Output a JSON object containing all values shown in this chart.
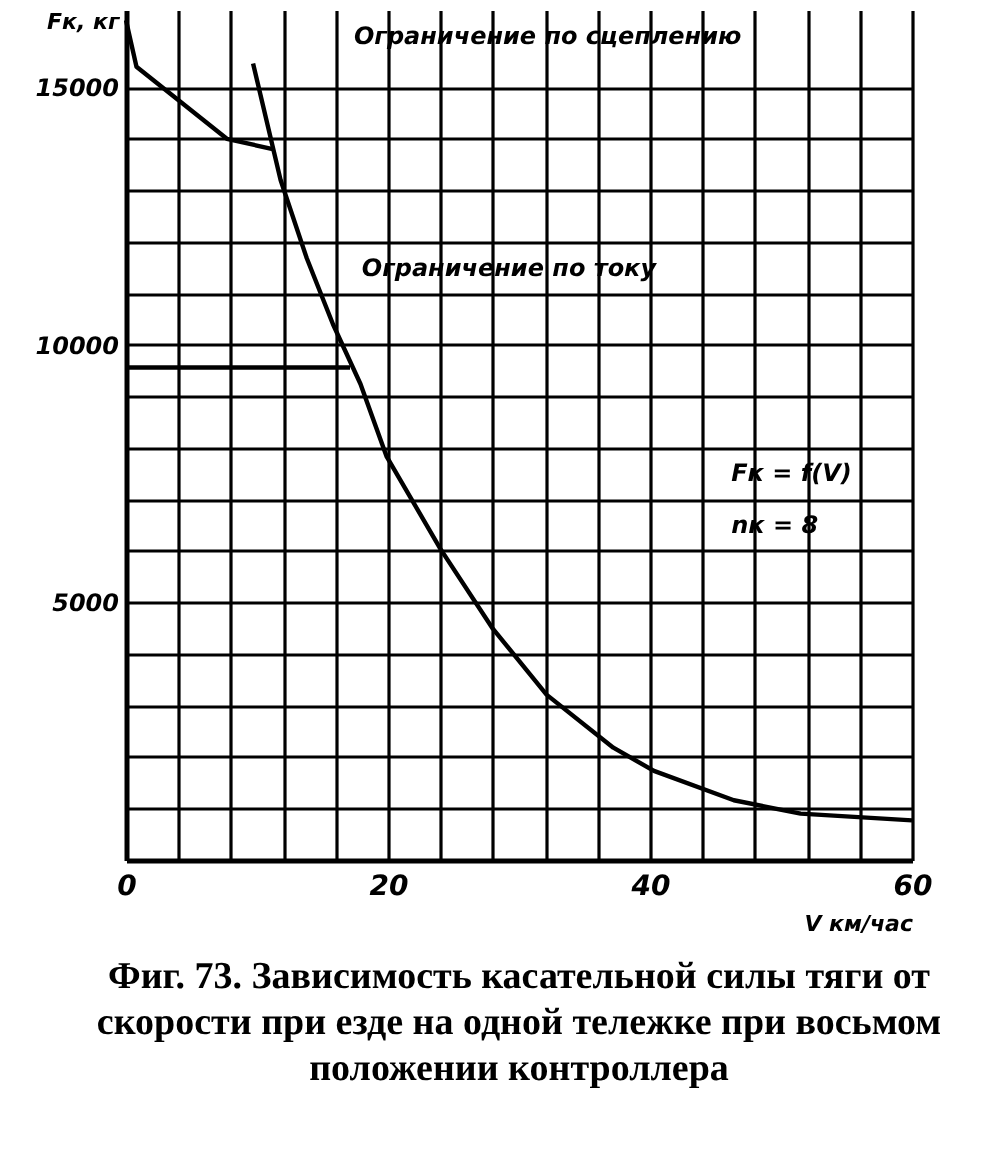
{
  "chart_data": {
    "type": "line",
    "xlabel": "V км/час",
    "ylabel": "Fк, кг",
    "title": "Фиг. 73. Зависимость касательной силы тяги от скорости при езде на одной тележке при восьмом положении контроллера",
    "series": [
      {
        "color": "#000000",
        "x": [
          9.7,
          11.8,
          13.8,
          15.8,
          17.9,
          19.9,
          24.0,
          28.0,
          32.1,
          37.2,
          40.3,
          46.4,
          51.5,
          60.0
        ],
        "values": [
          15460,
          13200,
          11680,
          10400,
          9240,
          7830,
          6040,
          4490,
          3210,
          2180,
          1730,
          1160,
          900,
          770
        ]
      },
      {
        "color": "#000000",
        "x": [
          0,
          0.8,
          7.7,
          11.2
        ],
        "values": [
          16300,
          15400,
          14000,
          13800
        ]
      },
      {
        "color": "#000000",
        "x": [
          0,
          17.1
        ],
        "values": [
          9560,
          9560
        ]
      }
    ],
    "annotations": [
      "Ограничение по сцеплению",
      "Ограничение по току",
      "Fк = f(V)",
      "nк = 8"
    ],
    "xlim": [
      0,
      60
    ],
    "ylim": [
      0,
      16500
    ],
    "xticks": [
      0,
      {
        "value": 4,
        "label": null
      },
      {
        "value": 8,
        "label": null
      },
      {
        "value": 12,
        "label": null
      },
      {
        "value": 16,
        "label": null
      },
      20,
      {
        "value": 24,
        "label": null
      },
      {
        "value": 28,
        "label": null
      },
      {
        "value": 32,
        "label": null
      },
      {
        "value": 36,
        "label": null
      },
      40,
      {
        "value": 44,
        "label": null
      },
      {
        "value": 48,
        "label": null
      },
      {
        "value": 52,
        "label": null
      },
      {
        "value": 56,
        "label": null
      },
      60
    ],
    "yticks": [
      {
        "value": 1000,
        "label": null
      },
      {
        "value": 2000,
        "label": null
      },
      {
        "value": 3000,
        "label": null
      },
      {
        "value": 4000,
        "label": null
      },
      5000,
      {
        "value": 6000,
        "label": null
      },
      {
        "value": 7000,
        "label": null
      },
      {
        "value": 8000,
        "label": null
      },
      {
        "value": 9000,
        "label": null
      },
      10000,
      {
        "value": 11000,
        "label": null
      },
      {
        "value": 12000,
        "label": null
      },
      {
        "value": 13000,
        "label": null
      },
      {
        "value": 14000,
        "label": null
      },
      15000
    ],
    "grid": true,
    "line_style": "solid",
    "marker": "none"
  }
}
